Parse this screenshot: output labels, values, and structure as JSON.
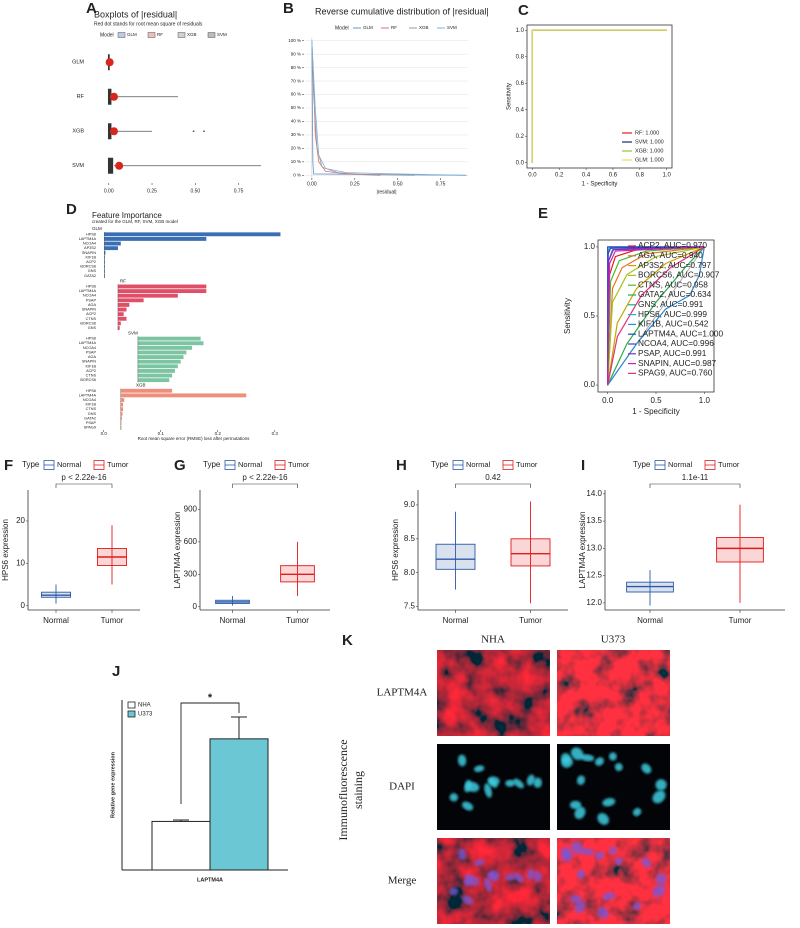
{
  "chart_data": [
    {
      "panel": "A",
      "type": "dotwhisker",
      "title": "Boxplots of |residual|",
      "subtitle": "Red dot stands for root mean square of residuals",
      "legend_title": "Model",
      "categories": [
        "GLM",
        "RF",
        "XGB",
        "SVM"
      ],
      "colors": [
        "#6a8fc9",
        "#e36b6b",
        "#9a9a9a",
        "#6b6b6b"
      ],
      "dot_color": "#d7261e",
      "values": [
        0.005,
        0.03,
        0.03,
        0.06
      ],
      "q1": [
        0,
        0,
        0,
        0
      ],
      "q3": [
        0.01,
        0.02,
        0.02,
        0.03
      ],
      "whisker_max": [
        0.01,
        0.4,
        0.25,
        0.88
      ],
      "outliers": [
        [],
        [],
        [
          0.49,
          0.55
        ],
        []
      ],
      "xlim": [
        -0.12,
        0.92
      ],
      "xticks": [
        {
          "value": 0,
          "label": "0.00"
        },
        0.25,
        {
          "value": 0.5,
          "label": "0.50"
        },
        0.75
      ]
    },
    {
      "panel": "B",
      "type": "line",
      "title": "Reverse cumulative distribution of |residual|",
      "xlabel": "|residual|",
      "legend_title": "Model",
      "series": [
        {
          "name": "GLM",
          "color": "#6a8fc9",
          "x": [
            0,
            0.003,
            0.006,
            0.01,
            0.9
          ],
          "values": [
            100,
            50,
            10,
            1,
            0
          ]
        },
        {
          "name": "RF",
          "color": "#e36b6b",
          "x": [
            0,
            0.01,
            0.02,
            0.04,
            0.08,
            0.2,
            0.4
          ],
          "values": [
            100,
            70,
            30,
            10,
            3,
            1,
            0
          ]
        },
        {
          "name": "XGB",
          "color": "#9a9a9a",
          "x": [
            0,
            0.01,
            0.03,
            0.06,
            0.15,
            0.3,
            0.6
          ],
          "values": [
            100,
            60,
            20,
            6,
            2,
            0.5,
            0
          ]
        },
        {
          "name": "SVM",
          "color": "#7fb0d8",
          "x": [
            0,
            0.02,
            0.04,
            0.08,
            0.2,
            0.5,
            0.9
          ],
          "values": [
            100,
            50,
            15,
            5,
            2,
            1,
            0
          ]
        }
      ],
      "xlim": [
        -0.04,
        0.91
      ],
      "ylim": [
        -2,
        102
      ],
      "grid": true,
      "xticks": [
        {
          "value": 0,
          "label": "0.00"
        },
        0.25,
        {
          "value": 0.5,
          "label": "0.50"
        },
        0.75
      ],
      "yticks": [
        {
          "value": 0,
          "label": "0 %"
        },
        {
          "value": 10,
          "label": "10 %"
        },
        {
          "value": 20,
          "label": "20 %"
        },
        {
          "value": 30,
          "label": "30 %"
        },
        {
          "value": 40,
          "label": "40 %"
        },
        {
          "value": 50,
          "label": "50 %"
        },
        {
          "value": 60,
          "label": "60 %"
        },
        {
          "value": 70,
          "label": "70 %"
        },
        {
          "value": 80,
          "label": "80 %"
        },
        {
          "value": 90,
          "label": "90 %"
        },
        {
          "value": 100,
          "label": "100 %"
        }
      ]
    },
    {
      "panel": "C",
      "type": "roc",
      "xlabel": "1 - Specificity",
      "ylabel": "Sensitivity",
      "legend": "lower right",
      "diagonal": false,
      "series": [
        {
          "name": "RF: 1.000",
          "color": "#e41a1c",
          "x": [
            0,
            0,
            1
          ],
          "values": [
            0,
            1,
            1
          ]
        },
        {
          "name": "SVM: 1.000",
          "color": "#1f2a6b",
          "x": [
            0,
            0,
            1
          ],
          "values": [
            0,
            1,
            1
          ]
        },
        {
          "name": "XGB: 1.000",
          "color": "#8cc63f",
          "x": [
            0,
            0,
            1
          ],
          "values": [
            0,
            1,
            1
          ]
        },
        {
          "name": "GLM: 1.000",
          "color": "#e8e052",
          "x": [
            0,
            0,
            1
          ],
          "values": [
            0,
            1,
            1
          ]
        }
      ],
      "xlim": [
        -0.04,
        1.04
      ],
      "ylim": [
        -0.04,
        1.04
      ],
      "xticks": [
        {
          "value": 0,
          "label": "0.0"
        },
        0.2,
        0.4,
        0.6,
        0.8,
        {
          "value": 1,
          "label": "1.0"
        }
      ],
      "yticks": [
        {
          "value": 0,
          "label": "0.0"
        },
        0.2,
        0.4,
        0.6,
        0.8,
        {
          "value": 1,
          "label": "1.0"
        }
      ]
    },
    {
      "panel": "D",
      "type": "barh",
      "title": "Feature Importance",
      "subtitle": "created for the GLM, RF, SVM, XGB model",
      "xlabel": "Root mean square error (RMSE) loss after permutations",
      "xlim": [
        -0.01,
        0.325
      ],
      "xticks": [
        {
          "value": 0,
          "label": "0.0"
        },
        0.1,
        0.2,
        0.3
      ],
      "panels": [
        {
          "name": "GLM",
          "color": "#3a6fb5",
          "baseline": 0.001,
          "categories": [
            "HPS6",
            "LAPTM4A",
            "NCOA4",
            "AP3S2",
            "SNAPIN",
            "KIF1B",
            "ACP2",
            "BORCS6",
            "GNS",
            "GATA2"
          ],
          "values": [
            0.31,
            0.18,
            0.03,
            0.025,
            0.003,
            0.002,
            0.002,
            0.002,
            0.002,
            0.002
          ]
        },
        {
          "name": "RF",
          "color": "#df4f68",
          "baseline": 0.025,
          "categories": [
            "HPS6",
            "LAPTM4A",
            "NCOA4",
            "PSAP",
            "AGA",
            "SNAPIN",
            "ACP2",
            "CTNS",
            "BORCS6",
            "GNS"
          ],
          "values": [
            0.18,
            0.18,
            0.13,
            0.07,
            0.045,
            0.04,
            0.035,
            0.04,
            0.03,
            0.028
          ]
        },
        {
          "name": "SVM",
          "color": "#7cc4a2",
          "baseline": 0.06,
          "categories": [
            "HPS6",
            "LAPTM4A",
            "NCOA4",
            "PSAP",
            "AGA",
            "SNAPIN",
            "KIF1B",
            "ACP2",
            "CTNS",
            "BORCS6"
          ],
          "values": [
            0.17,
            0.175,
            0.155,
            0.145,
            0.14,
            0.135,
            0.13,
            0.125,
            0.12,
            0.115
          ]
        },
        {
          "name": "XGB",
          "color": "#ef8f7a",
          "baseline": 0.03,
          "categories": [
            "HPS6",
            "LAPTM4A",
            "NCOA4",
            "KIF1B",
            "CTNS",
            "GNS",
            "GATA2",
            "PSAP",
            "SPAG9"
          ],
          "values": [
            0.12,
            0.25,
            0.036,
            0.034,
            0.034,
            0.033,
            0.032,
            0.031,
            0.031
          ]
        }
      ]
    },
    {
      "panel": "E",
      "type": "roc",
      "xlabel": "1 - Specificity",
      "ylabel": "Sensitivity",
      "legend": "upper right",
      "diagonal": true,
      "series": [
        {
          "name": "ACP2, AUC=0.970",
          "color": "#e31a1c",
          "x": [
            0,
            0.02,
            0.08,
            0.3,
            1
          ],
          "values": [
            0,
            0.8,
            0.93,
            0.98,
            1
          ]
        },
        {
          "name": "AGA, AUC=0.940",
          "color": "#e8702a",
          "x": [
            0,
            0.05,
            0.15,
            0.4,
            1
          ],
          "values": [
            0,
            0.7,
            0.85,
            0.95,
            1
          ]
        },
        {
          "name": "AP3S2, AUC=0.797",
          "color": "#c9a400",
          "x": [
            0,
            0.1,
            0.3,
            0.6,
            1
          ],
          "values": [
            0,
            0.45,
            0.7,
            0.88,
            1
          ]
        },
        {
          "name": "BORCS6, AUC=0.907",
          "color": "#a6c21a",
          "x": [
            0,
            0.05,
            0.2,
            0.5,
            1
          ],
          "values": [
            0,
            0.6,
            0.8,
            0.93,
            1
          ]
        },
        {
          "name": "CTNS, AUC=0.958",
          "color": "#4cb82a",
          "x": [
            0,
            0.03,
            0.12,
            0.4,
            1
          ],
          "values": [
            0,
            0.75,
            0.9,
            0.97,
            1
          ]
        },
        {
          "name": "GATA2, AUC=0.634",
          "color": "#2aa84a",
          "x": [
            0,
            0.2,
            0.5,
            0.8,
            1
          ],
          "values": [
            0,
            0.3,
            0.6,
            0.85,
            1
          ]
        },
        {
          "name": "GNS, AUC=0.991",
          "color": "#1aa88a",
          "x": [
            0,
            0.01,
            0.05,
            1
          ],
          "values": [
            0,
            0.9,
            0.98,
            1
          ]
        },
        {
          "name": "HPS6, AUC=0.999",
          "color": "#1ab0c8",
          "x": [
            0,
            0.005,
            0.02,
            1
          ],
          "values": [
            0,
            0.97,
            0.995,
            1
          ]
        },
        {
          "name": "KIF1B, AUC=0.542",
          "color": "#2a8ad8",
          "x": [
            0,
            0.3,
            0.6,
            0.85,
            0.95,
            1
          ],
          "values": [
            0,
            0.3,
            0.55,
            0.65,
            0.8,
            1
          ]
        },
        {
          "name": "LAPTM4A, AUC=1.000",
          "color": "#1a4fb8",
          "x": [
            0,
            0,
            1
          ],
          "values": [
            0,
            1,
            1
          ]
        },
        {
          "name": "NCOA4, AUC=0.996",
          "color": "#4a3ac8",
          "x": [
            0,
            0.005,
            0.03,
            1
          ],
          "values": [
            0,
            0.95,
            0.99,
            1
          ]
        },
        {
          "name": "PSAP, AUC=0.991",
          "color": "#8a2ac0",
          "x": [
            0,
            0.01,
            0.06,
            1
          ],
          "values": [
            0,
            0.9,
            0.98,
            1
          ]
        },
        {
          "name": "SNAPIN, AUC=0.987",
          "color": "#c02aa8",
          "x": [
            0,
            0.02,
            0.08,
            1
          ],
          "values": [
            0,
            0.88,
            0.97,
            1
          ]
        },
        {
          "name": "SPAG9, AUC=0.760",
          "color": "#e0307a",
          "x": [
            0,
            0.1,
            0.35,
            0.65,
            1
          ],
          "values": [
            0,
            0.35,
            0.65,
            0.85,
            1
          ]
        }
      ],
      "xlim": [
        -0.1,
        1.1
      ],
      "ylim": [
        -0.05,
        1.05
      ],
      "xticks": [
        {
          "value": 0,
          "label": "0.0"
        },
        0.5,
        {
          "value": 1,
          "label": "1.0"
        }
      ],
      "yticks": [
        {
          "value": 0,
          "label": "0.0"
        },
        0.5,
        {
          "value": 1,
          "label": "1.0"
        }
      ]
    },
    {
      "panel": "F",
      "type": "box",
      "ylabel": "HPS6 expression",
      "legend_title": "Type",
      "categories": [
        "Normal",
        "Tumor"
      ],
      "colors": [
        "#2c5aa8",
        "#e31a1c"
      ],
      "whisker_low": [
        0.5,
        5
      ],
      "q1": [
        2,
        9.5
      ],
      "median": [
        2.5,
        11.5
      ],
      "q3": [
        3.2,
        13.5
      ],
      "whisker_high": [
        5,
        19
      ],
      "pvalue_label": "p < 2.22e-16",
      "ylim": [
        -1,
        27.3
      ],
      "yticks": [
        0,
        10,
        20
      ]
    },
    {
      "panel": "G",
      "type": "box",
      "ylabel": "LAPTM4A expression",
      "legend_title": "Type",
      "categories": [
        "Normal",
        "Tumor"
      ],
      "colors": [
        "#2c5aa8",
        "#e31a1c"
      ],
      "whisker_low": [
        10,
        100
      ],
      "q1": [
        30,
        230
      ],
      "median": [
        45,
        300
      ],
      "q3": [
        60,
        380
      ],
      "whisker_high": [
        100,
        600
      ],
      "pvalue_label": "p < 2.22e-16",
      "ylim": [
        -30,
        1080
      ],
      "yticks": [
        0,
        300,
        600,
        900
      ]
    },
    {
      "panel": "H",
      "type": "box",
      "ylabel": "HPS6 expression",
      "legend_title": "Type",
      "categories": [
        "Normal",
        "Tumor"
      ],
      "colors": [
        "#2c5aa8",
        "#e31a1c"
      ],
      "whisker_low": [
        7.75,
        7.55
      ],
      "q1": [
        8.05,
        8.1
      ],
      "median": [
        8.2,
        8.28
      ],
      "q3": [
        8.42,
        8.5
      ],
      "whisker_high": [
        8.9,
        9.05
      ],
      "pvalue_label": "0.42",
      "ylim": [
        7.45,
        9.22
      ],
      "yticks": [
        7.5,
        {
          "value": 8,
          "label": "8.0"
        },
        8.5,
        {
          "value": 9,
          "label": "9.0"
        }
      ]
    },
    {
      "panel": "I",
      "type": "box",
      "ylabel": "LAPTM4A expression",
      "legend_title": "Type",
      "categories": [
        "Normal",
        "Tumor"
      ],
      "colors": [
        "#2c5aa8",
        "#e31a1c"
      ],
      "whisker_low": [
        11.95,
        12.0
      ],
      "q1": [
        12.2,
        12.75
      ],
      "median": [
        12.3,
        13.0
      ],
      "q3": [
        12.38,
        13.2
      ],
      "whisker_high": [
        12.6,
        13.8
      ],
      "pvalue_label": "1.1e-11",
      "ylim": [
        11.87,
        14.07
      ],
      "yticks": [
        {
          "value": 12,
          "label": "12.0"
        },
        12.5,
        {
          "value": 13,
          "label": "13.0"
        },
        13.5,
        {
          "value": 14,
          "label": "14.0"
        }
      ]
    },
    {
      "panel": "J",
      "type": "bar",
      "categories": [
        "LAPTM4A"
      ],
      "ylabel": "Relative gene expression",
      "significance": "*",
      "series": [
        {
          "name": "NHA",
          "color": "#ffffff",
          "values": [
            1.0
          ],
          "errors": [
            0.03
          ]
        },
        {
          "name": "U373",
          "color": "#6cc7d4",
          "values": [
            2.7
          ],
          "errors": [
            0.45
          ]
        }
      ],
      "ylim": [
        0,
        3.5
      ]
    }
  ],
  "panel_k": {
    "panel": "K",
    "columns": [
      "NHA",
      "U373"
    ],
    "rows": [
      "LAPTM4A",
      "DAPI",
      "Merge"
    ],
    "side_label": [
      "Immunofluorescence",
      "staining"
    ]
  }
}
